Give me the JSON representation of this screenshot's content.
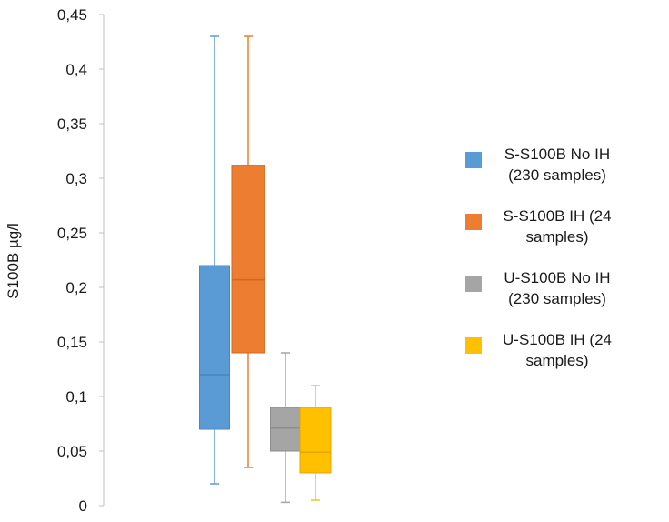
{
  "chart_data": {
    "type": "boxplot",
    "ylabel": "S100B µg/l",
    "ylim": [
      0,
      0.45
    ],
    "yticks": [
      0,
      0.05,
      0.1,
      0.15,
      0.2,
      0.25,
      0.3,
      0.35,
      0.4,
      0.45
    ],
    "ytick_labels": [
      "0",
      "0,05",
      "0,1",
      "0,15",
      "0,2",
      "0,25",
      "0,3",
      "0,35",
      "0,4",
      "0,45"
    ],
    "grid": false,
    "legend_position": "right",
    "series": [
      {
        "name": "S-S100B No IH (230 samples)",
        "color": "#5B9BD5",
        "stroke": "#4A86C0",
        "min": 0.02,
        "q1": 0.07,
        "median": 0.12,
        "q3": 0.22,
        "max": 0.43
      },
      {
        "name": "S-S100B IH (24 samples)",
        "color": "#ED7D31",
        "stroke": "#D0691F",
        "min": 0.035,
        "q1": 0.14,
        "median": 0.207,
        "q3": 0.312,
        "max": 0.43
      },
      {
        "name": "U-S100B No IH (230 samples)",
        "color": "#A5A5A5",
        "stroke": "#8C8C8C",
        "min": 0.003,
        "q1": 0.05,
        "median": 0.071,
        "q3": 0.09,
        "max": 0.14
      },
      {
        "name": "U-S100B IH (24 samples)",
        "color": "#FFC000",
        "stroke": "#E0A800",
        "min": 0.005,
        "q1": 0.03,
        "median": 0.049,
        "q3": 0.09,
        "max": 0.11
      }
    ]
  }
}
